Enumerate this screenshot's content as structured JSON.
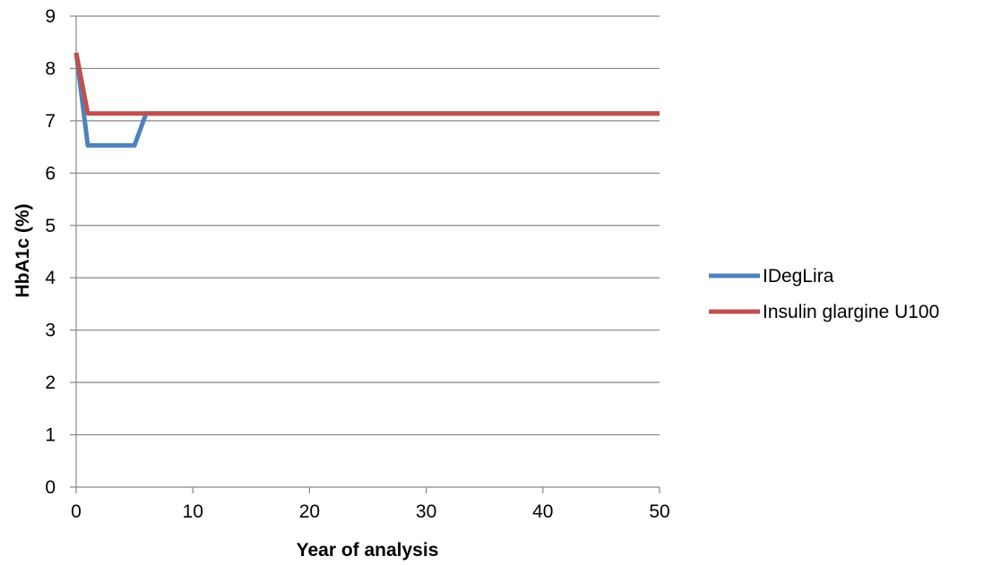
{
  "chart_data": {
    "type": "line",
    "xlabel": "Year of analysis",
    "ylabel": "HbA1c (%)",
    "xlim": [
      0,
      50
    ],
    "ylim": [
      0,
      9
    ],
    "xticks": [
      0,
      10,
      20,
      30,
      40,
      50
    ],
    "yticks": [
      0,
      1,
      2,
      3,
      4,
      5,
      6,
      7,
      8,
      9
    ],
    "grid": "horizontal",
    "legend_position": "right",
    "series": [
      {
        "name": "IDegLira",
        "color": "#4F81BD",
        "x": [
          0,
          1,
          2,
          3,
          4,
          5,
          6,
          50
        ],
        "y": [
          8.3,
          6.53,
          6.53,
          6.53,
          6.53,
          6.53,
          7.14,
          7.14
        ]
      },
      {
        "name": "Insulin glargine U100",
        "color": "#C0504D",
        "x": [
          0,
          1,
          50
        ],
        "y": [
          8.3,
          7.14,
          7.14
        ]
      }
    ]
  }
}
